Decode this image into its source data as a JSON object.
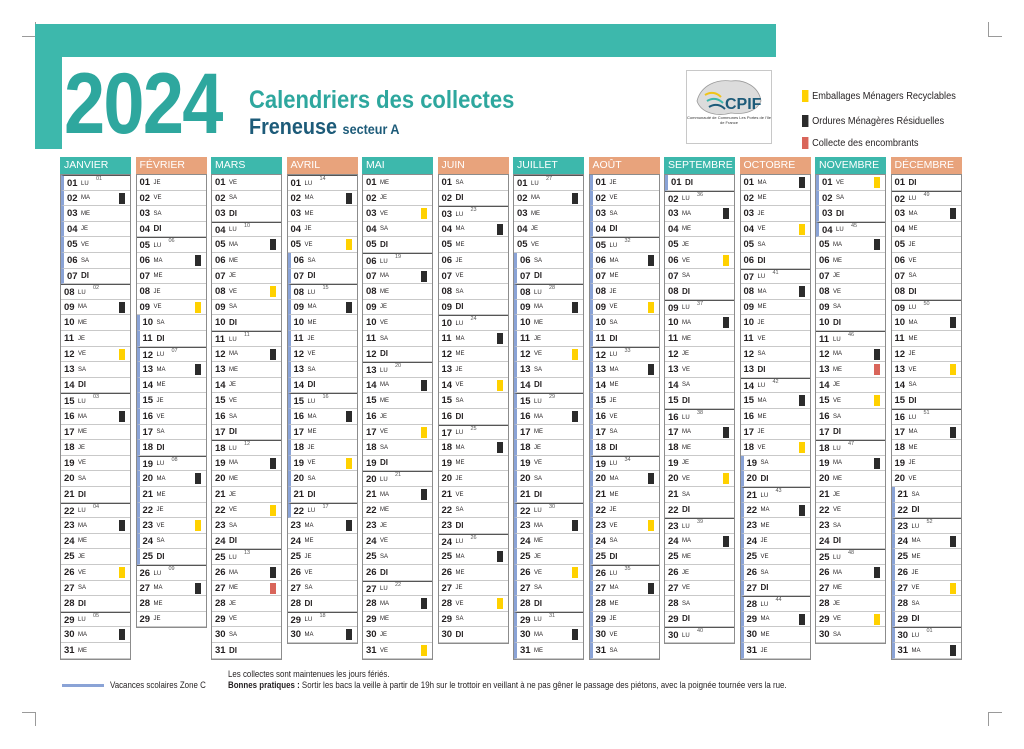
{
  "header": {
    "year": "2024",
    "title": "Calendriers des collectes",
    "commune": "Freneuse",
    "sector": "secteur A"
  },
  "logo": {
    "name": "CPIF",
    "tagline": "Communauté de Communes Les Portes de l'Ile de France"
  },
  "legend": [
    {
      "label": "Emballages Ménagers Recyclables",
      "color": "#ffd100"
    },
    {
      "label": "Ordures Ménagères Résiduelles",
      "color": "#2b2b2b"
    },
    {
      "label": "Collecte des encombrants",
      "color": "#d9655a"
    }
  ],
  "footer": {
    "vacances_label": "Vacances scolaires Zone C",
    "note1": "Les collectes sont maintenues les jours fériés.",
    "bonnes_label": "Bonnes pratiques :",
    "bonnes_text": " Sortir les bacs la veille à partir de 19h sur le trottoir en veillant à ne pas gêner le passage des piétons, avec la poignée tournée vers la rue."
  },
  "colors": {
    "teal": "#3db8ac",
    "orange_header": "#e8a37c",
    "vacation_bar": "#8aa3d6",
    "recyclable": "#ffd100",
    "residual": "#2b2b2b",
    "bulky": "#d9655a"
  },
  "weekday_abbr": [
    "DI",
    "LU",
    "MA",
    "ME",
    "JE",
    "VE",
    "SA"
  ],
  "months": [
    {
      "name": "JANVIER",
      "color": "#3db8ac",
      "days": 31,
      "start": 1,
      "weeks": {
        "1": "01",
        "8": "02",
        "15": "03",
        "22": "04",
        "29": "05"
      },
      "vac": [
        1,
        2,
        3,
        4,
        5,
        6,
        7
      ],
      "marks": {
        "2": "black",
        "9": "black",
        "12": "yellow",
        "16": "black",
        "23": "black",
        "26": "yellow",
        "30": "black"
      }
    },
    {
      "name": "FÉVRIER",
      "color": "#e8a37c",
      "days": 29,
      "start": 4,
      "weeks": {
        "5": "06",
        "12": "07",
        "19": "08",
        "26": "09"
      },
      "vac": [
        10,
        11,
        12,
        13,
        14,
        15,
        16,
        17,
        18,
        19,
        20,
        21,
        22,
        23,
        24,
        25
      ],
      "marks": {
        "6": "black",
        "9": "yellow",
        "13": "black",
        "20": "black",
        "23": "yellow",
        "27": "black"
      }
    },
    {
      "name": "MARS",
      "color": "#3db8ac",
      "days": 31,
      "start": 5,
      "weeks": {
        "4": "10",
        "11": "11",
        "18": "12",
        "25": "13"
      },
      "vac": [],
      "marks": {
        "5": "black",
        "8": "yellow",
        "12": "black",
        "19": "black",
        "22": "yellow",
        "26": "black",
        "27": "red"
      }
    },
    {
      "name": "AVRIL",
      "color": "#e8a37c",
      "days": 30,
      "start": 1,
      "weeks": {
        "1": "14",
        "8": "15",
        "15": "16",
        "22": "17",
        "29": "18"
      },
      "vac": [
        6,
        7,
        8,
        9,
        10,
        11,
        12,
        13,
        14,
        15,
        16,
        17,
        18,
        19,
        20,
        21,
        22
      ],
      "marks": {
        "2": "black",
        "5": "yellow",
        "9": "black",
        "16": "black",
        "19": "yellow",
        "23": "black",
        "30": "black"
      }
    },
    {
      "name": "MAI",
      "color": "#3db8ac",
      "days": 31,
      "start": 3,
      "weeks": {
        "6": "19",
        "13": "20",
        "20": "21",
        "27": "22"
      },
      "vac": [],
      "marks": {
        "3": "yellow",
        "7": "black",
        "14": "black",
        "17": "yellow",
        "21": "black",
        "28": "black",
        "31": "yellow"
      }
    },
    {
      "name": "JUIN",
      "color": "#e8a37c",
      "days": 30,
      "start": 6,
      "weeks": {
        "3": "23",
        "10": "24",
        "17": "25",
        "24": "26"
      },
      "vac": [],
      "marks": {
        "4": "black",
        "11": "black",
        "14": "yellow",
        "18": "black",
        "25": "black",
        "28": "yellow"
      }
    },
    {
      "name": "JUILLET",
      "color": "#3db8ac",
      "days": 31,
      "start": 1,
      "weeks": {
        "1": "27",
        "8": "28",
        "15": "29",
        "22": "30",
        "29": "31"
      },
      "vac": [
        6,
        7,
        8,
        9,
        10,
        11,
        12,
        13,
        14,
        15,
        16,
        17,
        18,
        19,
        20,
        21,
        22,
        23,
        24,
        25,
        26,
        27,
        28,
        29,
        30,
        31
      ],
      "marks": {
        "2": "black",
        "9": "black",
        "12": "yellow",
        "16": "black",
        "23": "black",
        "26": "yellow",
        "30": "black"
      }
    },
    {
      "name": "AOÛT",
      "color": "#e8a37c",
      "days": 31,
      "start": 4,
      "weeks": {
        "5": "32",
        "12": "33",
        "19": "34",
        "26": "35"
      },
      "vac": [
        1,
        2,
        3,
        4,
        5,
        6,
        7,
        8,
        9,
        10,
        11,
        12,
        13,
        14,
        15,
        16,
        17,
        18,
        19,
        20,
        21,
        22,
        23,
        24,
        25,
        26,
        27,
        28,
        29,
        30,
        31
      ],
      "marks": {
        "6": "black",
        "9": "yellow",
        "13": "black",
        "20": "black",
        "23": "yellow",
        "27": "black"
      }
    },
    {
      "name": "SEPTEMBRE",
      "color": "#3db8ac",
      "days": 30,
      "start": 0,
      "weeks": {
        "2": "36",
        "9": "37",
        "16": "38",
        "23": "39",
        "30": "40"
      },
      "vac": [
        1
      ],
      "marks": {
        "3": "black",
        "6": "yellow",
        "10": "black",
        "17": "black",
        "20": "yellow",
        "24": "black"
      }
    },
    {
      "name": "OCTOBRE",
      "color": "#e8a37c",
      "days": 31,
      "start": 2,
      "weeks": {
        "7": "41",
        "14": "42",
        "21": "43",
        "28": "44"
      },
      "vac": [
        19,
        20,
        21,
        22,
        23,
        24,
        25,
        26,
        27,
        28,
        29,
        30,
        31
      ],
      "marks": {
        "1": "black",
        "4": "yellow",
        "8": "black",
        "15": "black",
        "18": "yellow",
        "22": "black",
        "29": "black"
      }
    },
    {
      "name": "NOVEMBRE",
      "color": "#3db8ac",
      "days": 30,
      "start": 5,
      "weeks": {
        "4": "45",
        "11": "46",
        "18": "47",
        "25": "48"
      },
      "vac": [
        1,
        2,
        3,
        4
      ],
      "marks": {
        "1": "yellow",
        "5": "black",
        "12": "black",
        "13": "red",
        "15": "yellow",
        "19": "black",
        "26": "black",
        "29": "yellow"
      }
    },
    {
      "name": "DÉCEMBRE",
      "color": "#e8a37c",
      "days": 31,
      "start": 0,
      "weeks": {
        "2": "49",
        "9": "50",
        "16": "51",
        "23": "52",
        "30": "01"
      },
      "vac": [
        21,
        22,
        23,
        24,
        25,
        26,
        27,
        28,
        29,
        30,
        31
      ],
      "marks": {
        "3": "black",
        "10": "black",
        "13": "yellow",
        "17": "black",
        "24": "black",
        "27": "yellow",
        "31": "black"
      }
    }
  ]
}
